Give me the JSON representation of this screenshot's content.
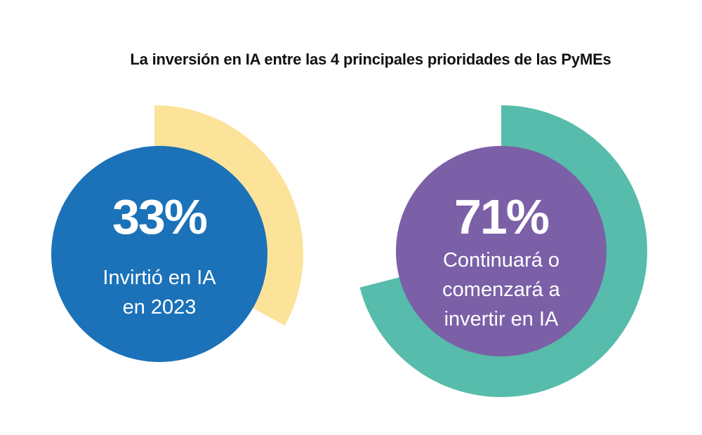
{
  "chart_data": {
    "type": "pie",
    "title": "La inversión en IA entre las 4 principales prioridades de las PyMEs",
    "items": [
      {
        "value": 33,
        "value_label": "33%",
        "description_lines": [
          "Invirtió en IA",
          "en 2023"
        ],
        "colors": {
          "arc": "#fce39a",
          "center": "#1b72b8"
        }
      },
      {
        "value": 71,
        "value_label": "71%",
        "description_lines": [
          "Continuará o",
          "comenzará a",
          "invertir en IA"
        ],
        "colors": {
          "arc": "#57bcab",
          "center": "#7b60a8"
        }
      }
    ]
  }
}
